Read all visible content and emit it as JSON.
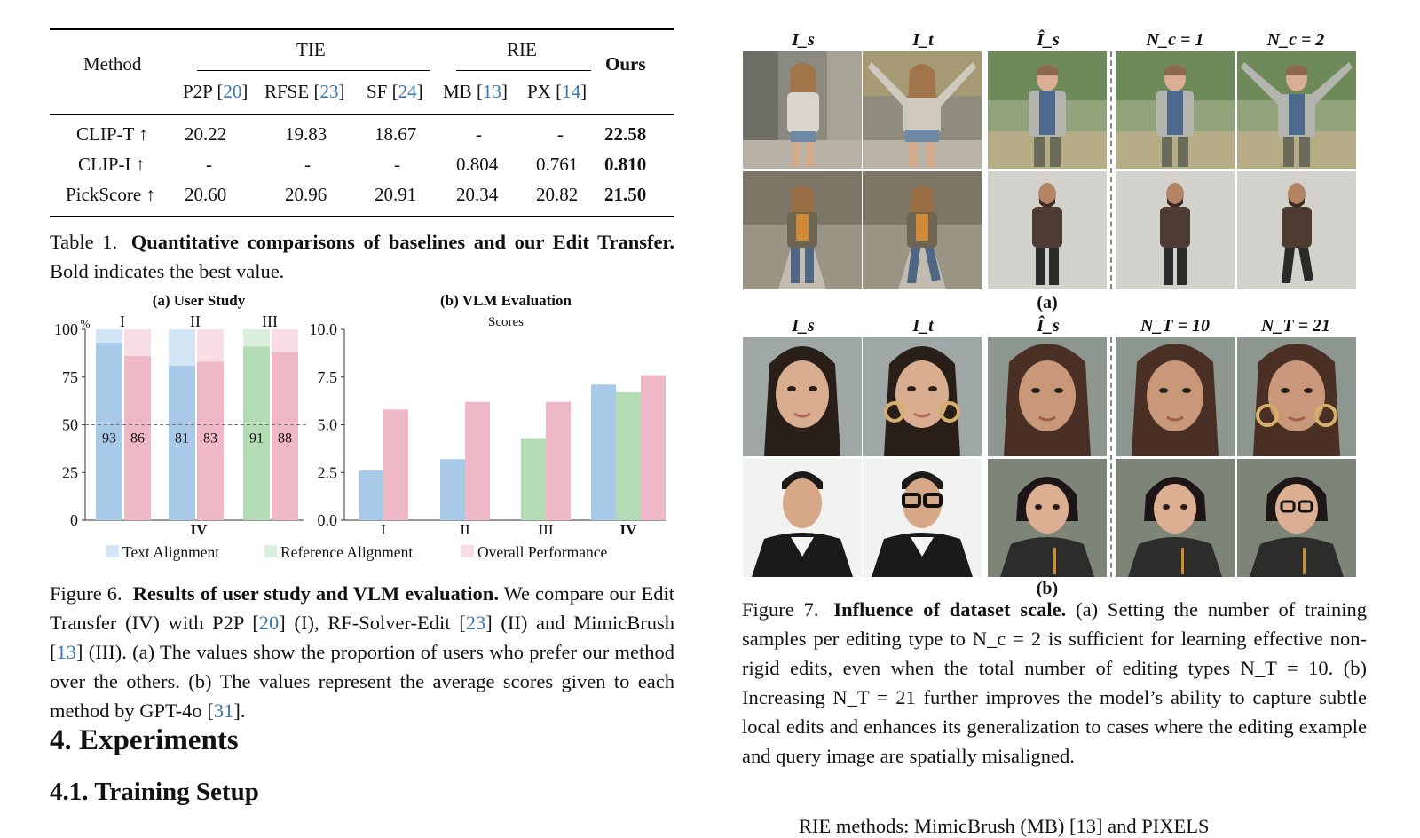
{
  "table": {
    "method_header": "Method",
    "groups": [
      "TIE",
      "RIE"
    ],
    "ours_header": "Ours",
    "subheaders": [
      {
        "name": "P2P",
        "cite": "20"
      },
      {
        "name": "RFSE",
        "cite": "23"
      },
      {
        "name": "SF",
        "cite": "24"
      },
      {
        "name": "MB",
        "cite": "13"
      },
      {
        "name": "PX",
        "cite": "14"
      }
    ],
    "rows": [
      {
        "metric": "CLIP-T ↑",
        "values": [
          "20.22",
          "19.83",
          "18.67",
          "-",
          "-"
        ],
        "ours": "22.58"
      },
      {
        "metric": "CLIP-I ↑",
        "values": [
          "-",
          "-",
          "-",
          "0.804",
          "0.761"
        ],
        "ours": "0.810"
      },
      {
        "metric": "PickScore ↑",
        "values": [
          "20.60",
          "20.96",
          "20.91",
          "20.34",
          "20.82"
        ],
        "ours": "21.50"
      }
    ],
    "caption_label": "Table 1.",
    "caption_bold": "Quantitative comparisons of baselines and our Edit Transfer.",
    "caption_rest": "Bold indicates the best value."
  },
  "figure6": {
    "caption_label": "Figure 6.",
    "caption_bold": "Results of user study and VLM evaluation.",
    "caption_p1": "We compare our Edit Transfer (IV) with P2P",
    "cite1": "20",
    "caption_p2": "(I), RF-Solver-Edit",
    "cite2": "23",
    "caption_p3": "(II) and MimicBrush",
    "cite3": "13",
    "caption_p4": "(III). (a) The values show the proportion of users who prefer our method over the others. (b) The values represent the average scores given to each method by GPT-4o",
    "cite4": "31",
    "caption_p5": ".",
    "legend": [
      "Text Alignment",
      "Reference Alignment",
      "Overall Performance"
    ]
  },
  "chart_data": [
    {
      "type": "bar",
      "title": "(a) User Study",
      "unit": "%",
      "ylim": [
        0,
        100
      ],
      "yticks": [
        "0",
        "25",
        "50",
        "75",
        "100"
      ],
      "groups": [
        "I",
        "II",
        "III"
      ],
      "bottom_label": "IV",
      "reference_line": 50,
      "bars": [
        {
          "group": "I",
          "metric": "Text Alignment",
          "value": 93
        },
        {
          "group": "I",
          "metric": "Overall Performance",
          "value": 86
        },
        {
          "group": "II",
          "metric": "Text Alignment",
          "value": 81
        },
        {
          "group": "II",
          "metric": "Overall Performance",
          "value": 83
        },
        {
          "group": "III",
          "metric": "Reference Alignment",
          "value": 91
        },
        {
          "group": "III",
          "metric": "Overall Performance",
          "value": 88
        }
      ]
    },
    {
      "type": "bar",
      "title": "(b) VLM Evaluation",
      "ylabel": "Scores",
      "ylim": [
        0,
        10
      ],
      "yticks": [
        "0.0",
        "2.5",
        "5.0",
        "7.5",
        "10.0"
      ],
      "categories": [
        "I",
        "II",
        "III",
        "IV"
      ],
      "series": [
        {
          "name": "Text Alignment",
          "values": [
            2.6,
            3.2,
            null,
            7.1
          ]
        },
        {
          "name": "Reference Alignment",
          "values": [
            null,
            null,
            4.3,
            6.7
          ]
        },
        {
          "name": "Overall Performance",
          "values": [
            5.8,
            6.2,
            6.2,
            7.6
          ]
        }
      ]
    }
  ],
  "colors": {
    "text_alignment": "#a9c9e8",
    "text_alignment_light": "#d4e5f5",
    "reference_alignment": "#b3dcb5",
    "reference_alignment_light": "#dbf0dc",
    "overall_performance": "#efb8c6",
    "overall_performance_light": "#f8dde4",
    "citation": "#3a76b0"
  },
  "sections": {
    "experiments": "4. Experiments",
    "training_setup": "4.1. Training Setup"
  },
  "figure7": {
    "headers_a": [
      "I_s",
      "I_t",
      "Î_s",
      "N_c = 1",
      "N_c = 2"
    ],
    "headers_b": [
      "I_s",
      "I_t",
      "Î_s",
      "N_T = 10",
      "N_T = 21"
    ],
    "label_a": "(a)",
    "label_b": "(b)",
    "caption_label": "Figure 7.",
    "caption_bold": "Influence of dataset scale.",
    "caption_rest": "(a) Setting the number of training samples per editing type to N_c = 2 is sufficient for learning effective non-rigid edits, even when the total number of editing types N_T = 10. (b) Increasing N_T = 21 further improves the model’s ability to capture subtle local edits and enhances its generalization to cases where the editing example and query image are spatially misaligned.",
    "cut_line": "RIE methods: MimicBrush (MB) [13] and PIXELS"
  }
}
